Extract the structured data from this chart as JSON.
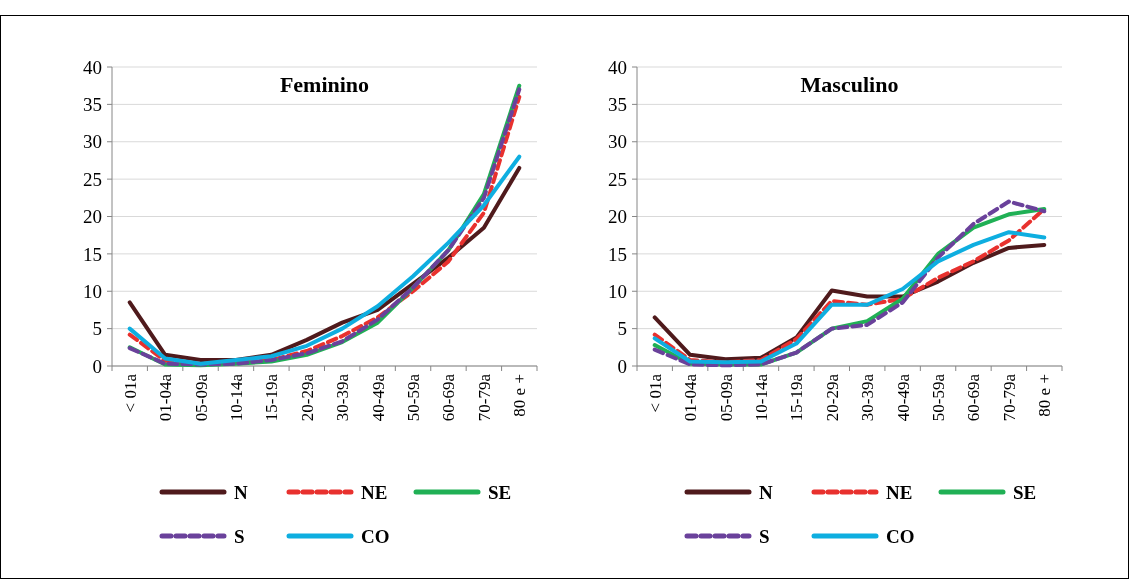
{
  "chart_data": [
    {
      "type": "line",
      "title": "Feminino",
      "categories": [
        "< 01a",
        "01-04a",
        "05-09a",
        "10-14a",
        "15-19a",
        "20-29a",
        "30-39a",
        "40-49a",
        "50-59a",
        "60-69a",
        "70-79a",
        "80 e +"
      ],
      "ylim": [
        0,
        40
      ],
      "yticks": [
        0,
        5,
        10,
        15,
        20,
        25,
        30,
        35,
        40
      ],
      "grid": "y",
      "legend": "bottom",
      "series": [
        {
          "name": "N",
          "color": "#4f1a1c",
          "line_style": "solid",
          "values": [
            8.5,
            1.5,
            0.8,
            0.8,
            1.5,
            3.5,
            5.8,
            7.5,
            11,
            14.5,
            18.5,
            26.5
          ]
        },
        {
          "name": "NE",
          "color": "#e8312e",
          "line_style": "dashed",
          "values": [
            4.2,
            0.7,
            0.3,
            0.5,
            0.8,
            2,
            4,
            6.5,
            10,
            14,
            20.5,
            36
          ]
        },
        {
          "name": "SE",
          "color": "#20b055",
          "line_style": "solid",
          "values": [
            2.5,
            0.2,
            0.1,
            0.3,
            0.6,
            1.5,
            3.2,
            5.8,
            10.5,
            15.5,
            23,
            37.5
          ]
        },
        {
          "name": "S",
          "color": "#6a419b",
          "line_style": "dashed",
          "values": [
            2.4,
            0.3,
            0.2,
            0.3,
            0.8,
            1.7,
            3.3,
            6.2,
            10.5,
            15.5,
            22.5,
            37
          ]
        },
        {
          "name": "CO",
          "color": "#0eaee0",
          "line_style": "solid",
          "values": [
            5,
            1,
            0.3,
            0.8,
            1.3,
            2.7,
            5,
            8,
            12,
            16.5,
            21.5,
            28
          ]
        }
      ]
    },
    {
      "type": "line",
      "title": "Masculino",
      "categories": [
        "< 01a",
        "01-04a",
        "05-09a",
        "10-14a",
        "15-19a",
        "20-29a",
        "30-39a",
        "40-49a",
        "50-59a",
        "60-69a",
        "70-79a",
        "80 e +"
      ],
      "ylim": [
        0,
        40
      ],
      "yticks": [
        0,
        5,
        10,
        15,
        20,
        25,
        30,
        35,
        40
      ],
      "grid": "y",
      "legend": "bottom",
      "series": [
        {
          "name": "N",
          "color": "#4f1a1c",
          "line_style": "solid",
          "values": [
            6.5,
            1.5,
            0.9,
            1.1,
            3.8,
            10.1,
            9.3,
            9.3,
            11.3,
            13.8,
            15.8,
            16.2
          ]
        },
        {
          "name": "NE",
          "color": "#e8312e",
          "line_style": "dashed",
          "values": [
            4.2,
            0.8,
            0.5,
            0.8,
            3.6,
            8.7,
            8.2,
            9,
            11.8,
            14,
            16.8,
            21
          ]
        },
        {
          "name": "SE",
          "color": "#20b055",
          "line_style": "solid",
          "values": [
            2.8,
            0.3,
            0.2,
            0.2,
            1.8,
            5,
            6,
            9,
            15,
            18.5,
            20.3,
            21
          ]
        },
        {
          "name": "S",
          "color": "#6a419b",
          "line_style": "dashed",
          "values": [
            2.2,
            0.2,
            0.1,
            0.2,
            1.8,
            5,
            5.5,
            8.5,
            14.5,
            19,
            22,
            20.7
          ]
        },
        {
          "name": "CO",
          "color": "#0eaee0",
          "line_style": "solid",
          "values": [
            3.7,
            0.6,
            0.5,
            0.6,
            3,
            8.2,
            8.2,
            10.3,
            14,
            16.2,
            17.9,
            17.2
          ]
        }
      ]
    }
  ]
}
